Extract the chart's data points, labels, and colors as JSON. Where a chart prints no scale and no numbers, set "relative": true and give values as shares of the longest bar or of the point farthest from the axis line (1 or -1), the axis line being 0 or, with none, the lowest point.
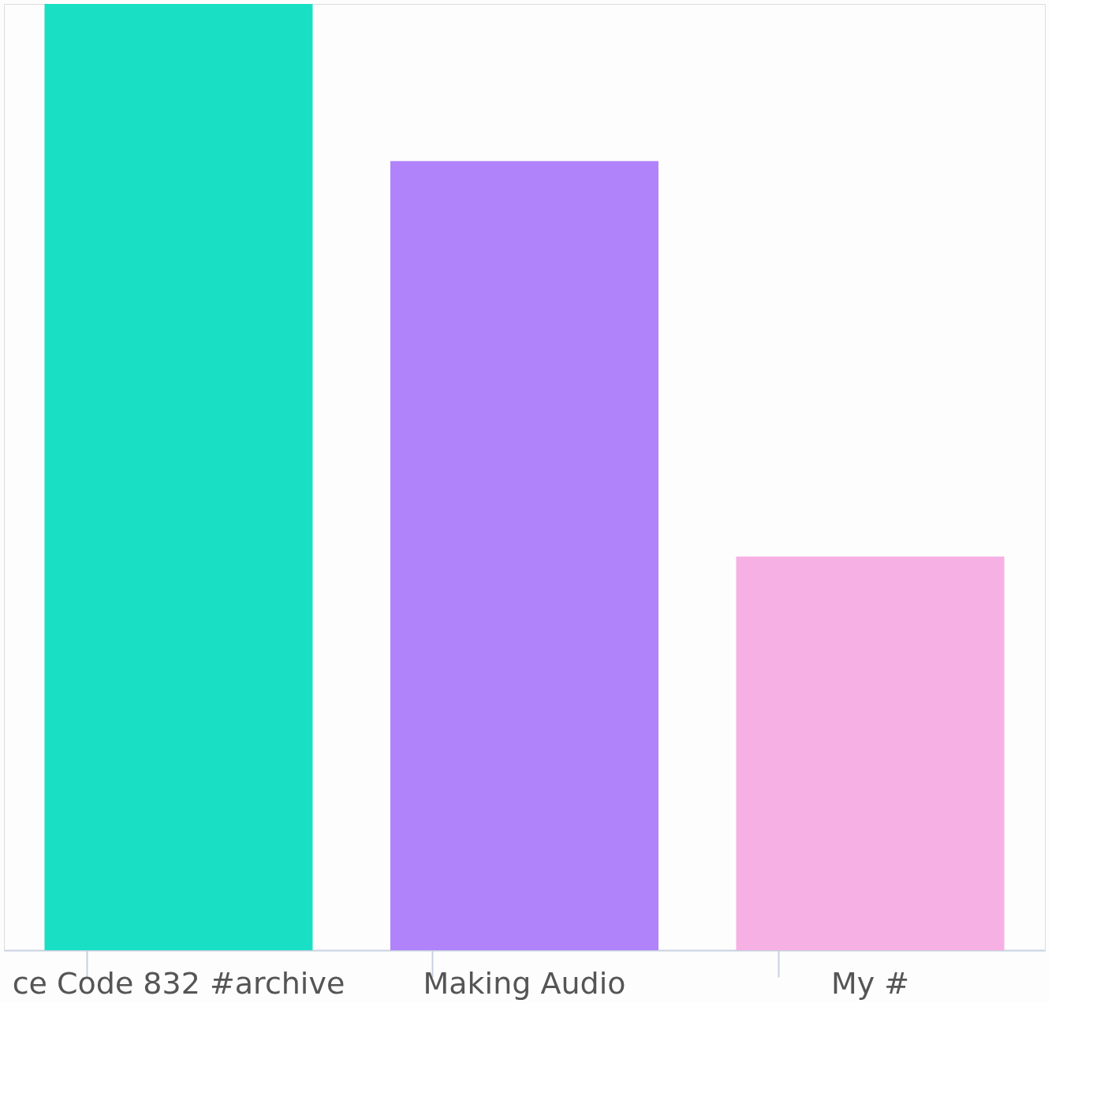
{
  "chart_data": {
    "type": "bar",
    "relative": true,
    "grid": false,
    "categories": [
      "ce Code 832 #archive",
      "Making Audio",
      "My #"
    ],
    "values": [
      1,
      0.834,
      0.416
    ],
    "colors": [
      "#19e0c4",
      "#b183fa",
      "#f7b0e4"
    ]
  }
}
